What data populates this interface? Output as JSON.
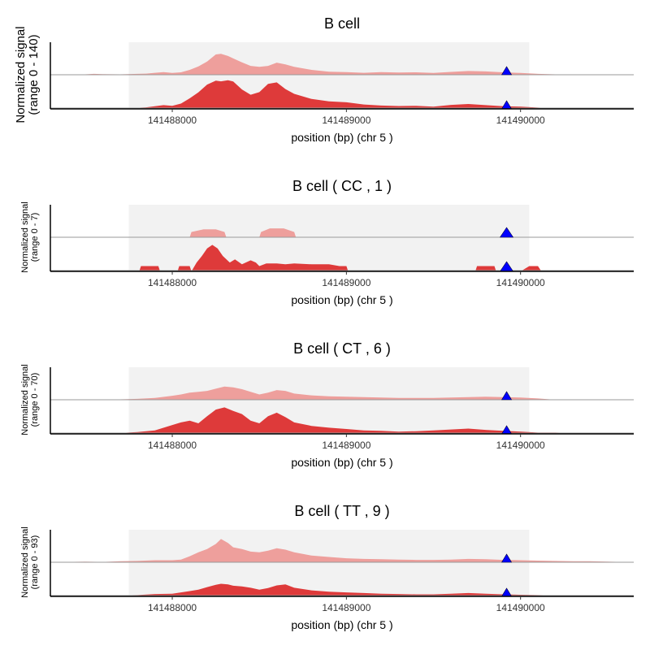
{
  "colors": {
    "group1": "#ee9f9c",
    "group2": "#de3a3a",
    "highlight": "#f2f2f2",
    "snp": "#0000ff",
    "baseline": "#999999",
    "axis": "#000000"
  },
  "chart_data": [
    {
      "type": "area",
      "title": "B cell",
      "ylabel_line1": "Normalized signal",
      "ylabel_line2": "(range 0 - 140)",
      "xlabel": "position (bp) (chr 5 )",
      "x_ticks": [
        141488000,
        141489000,
        141490000
      ],
      "x_tick_labels": [
        "141488000",
        "141489000",
        "141490000"
      ],
      "xlim": [
        141487300,
        141490650
      ],
      "highlight_range": [
        141487750,
        141490050
      ],
      "snp_position": 141489920,
      "ylim": [
        0,
        140
      ],
      "series": [
        {
          "x": [
            141487300,
            141487400,
            141487500,
            141487550,
            141487600,
            141487700,
            141487800,
            141487850,
            141487900,
            141487950,
            141488000,
            141488050,
            141488100,
            141488150,
            141488200,
            141488250,
            141488280,
            141488320,
            141488350,
            141488400,
            141488450,
            141488500,
            141488550,
            141488600,
            141488650,
            141488700,
            141488800,
            141488900,
            141489000,
            141489100,
            141489200,
            141489300,
            141489400,
            141489500,
            141489600,
            141489700,
            141489800,
            141489900,
            141490000,
            141490100,
            141490200,
            141490400,
            141490650
          ],
          "values": [
            0,
            1,
            2,
            4,
            3,
            2,
            4,
            5,
            9,
            12,
            8,
            11,
            22,
            38,
            60,
            92,
            95,
            85,
            74,
            56,
            40,
            36,
            40,
            55,
            47,
            36,
            22,
            14,
            12,
            9,
            12,
            10,
            11,
            8,
            13,
            17,
            15,
            11,
            8,
            4,
            2,
            2,
            0
          ]
        },
        {
          "x": [
            141487300,
            141487400,
            141487500,
            141487550,
            141487600,
            141487700,
            141487800,
            141487850,
            141487900,
            141487950,
            141488000,
            141488050,
            141488100,
            141488150,
            141488200,
            141488250,
            141488280,
            141488320,
            141488350,
            141488400,
            141488450,
            141488500,
            141488550,
            141488600,
            141488650,
            141488700,
            141488800,
            141488900,
            141489000,
            141489100,
            141489200,
            141489300,
            141489400,
            141489500,
            141489600,
            141489700,
            141489800,
            141489900,
            141490000,
            141490100,
            141490200,
            141490400,
            141490650
          ],
          "values": [
            0,
            5,
            2,
            4,
            3,
            2,
            5,
            7,
            12,
            17,
            14,
            24,
            48,
            75,
            110,
            128,
            125,
            130,
            124,
            88,
            64,
            76,
            113,
            120,
            90,
            68,
            45,
            34,
            30,
            20,
            15,
            13,
            14,
            10,
            18,
            22,
            17,
            12,
            10,
            6,
            3,
            2,
            0
          ]
        }
      ]
    },
    {
      "type": "area",
      "title": "B cell ( CC , 1 )",
      "ylabel_line1": "Normalized signal",
      "ylabel_line2": "(range 0 - 7)",
      "xlabel": "position (bp) (chr 5 )",
      "x_ticks": [
        141488000,
        141489000,
        141490000
      ],
      "x_tick_labels": [
        "141488000",
        "141489000",
        "141490000"
      ],
      "xlim": [
        141487300,
        141490650
      ],
      "highlight_range": [
        141487750,
        141490050
      ],
      "snp_position": 141489920,
      "ylim": [
        0,
        7
      ],
      "series": [
        {
          "x": [
            141487300,
            141488100,
            141488110,
            141488180,
            141488250,
            141488300,
            141488310,
            141488500,
            141488510,
            141488560,
            141488640,
            141488700,
            141488710,
            141490650
          ],
          "values": [
            0,
            0,
            1.2,
            1.8,
            1.8,
            1.2,
            0,
            0,
            1.2,
            2.0,
            2.0,
            1.2,
            0,
            0
          ],
          "step": true
        },
        {
          "x": [
            141487300,
            141487810,
            141487820,
            141487920,
            141487930,
            141488030,
            141488040,
            141488100,
            141488110,
            141488140,
            141488170,
            141488200,
            141488230,
            141488260,
            141488290,
            141488330,
            141488360,
            141488400,
            141488450,
            141488480,
            141488500,
            141488540,
            141488600,
            141488650,
            141488700,
            141488800,
            141488900,
            141488960,
            141489000,
            141489010,
            141489740,
            141489750,
            141489850,
            141489860,
            141490000,
            141490050,
            141490100,
            141490120,
            141490200,
            141490210,
            141490650
          ],
          "values": [
            0,
            0,
            1.2,
            1.2,
            0,
            0,
            1.2,
            1.2,
            0,
            2.0,
            3.5,
            5.2,
            6.0,
            5.2,
            3.5,
            2.0,
            2.7,
            1.6,
            2.5,
            2.0,
            1.2,
            1.8,
            1.8,
            1.6,
            1.8,
            1.6,
            1.6,
            1.2,
            1.2,
            0,
            0,
            1.2,
            1.2,
            0,
            0,
            1.2,
            1.2,
            0,
            0,
            0,
            0
          ],
          "step": true
        }
      ]
    },
    {
      "type": "area",
      "title": "B cell ( CT , 6 )",
      "ylabel_line1": "Normalized signal",
      "ylabel_line2": "(range 0 - 70)",
      "xlabel": "position (bp) (chr 5 )",
      "x_ticks": [
        141488000,
        141489000,
        141490000
      ],
      "x_tick_labels": [
        "141488000",
        "141489000",
        "141490000"
      ],
      "xlim": [
        141487300,
        141490650
      ],
      "highlight_range": [
        141487750,
        141490050
      ],
      "snp_position": 141489920,
      "ylim": [
        0,
        70
      ],
      "series": [
        {
          "x": [
            141487300,
            141487500,
            141487700,
            141487800,
            141487900,
            141488000,
            141488050,
            141488100,
            141488150,
            141488200,
            141488250,
            141488300,
            141488350,
            141488400,
            141488450,
            141488500,
            141488550,
            141488600,
            141488650,
            141488700,
            141488800,
            141488900,
            141489000,
            141489100,
            141489200,
            141489300,
            141489400,
            141489500,
            141489600,
            141489700,
            141489800,
            141489900,
            141490000,
            141490100,
            141490200,
            141490650
          ],
          "values": [
            0,
            0,
            1,
            2,
            4,
            9,
            12,
            16,
            18,
            20,
            25,
            30,
            28,
            24,
            18,
            12,
            16,
            22,
            20,
            14,
            10,
            8,
            7,
            6,
            5,
            4,
            4,
            4,
            5,
            6,
            7,
            6,
            5,
            3,
            0,
            0
          ]
        },
        {
          "x": [
            141487300,
            141487400,
            141487600,
            141487700,
            141487800,
            141487900,
            141488000,
            141488050,
            141488100,
            141488150,
            141488200,
            141488250,
            141488300,
            141488350,
            141488400,
            141488450,
            141488500,
            141488550,
            141488600,
            141488650,
            141488700,
            141488800,
            141488900,
            141489000,
            141489100,
            141489200,
            141489300,
            141489400,
            141489500,
            141489600,
            141489700,
            141489800,
            141489900,
            141490000,
            141490100,
            141490200,
            141490300,
            141490400,
            141490650
          ],
          "values": [
            0,
            2,
            1,
            2,
            4,
            8,
            20,
            26,
            30,
            24,
            40,
            55,
            60,
            52,
            45,
            30,
            24,
            40,
            48,
            38,
            26,
            18,
            14,
            11,
            8,
            7,
            5,
            6,
            8,
            10,
            12,
            9,
            7,
            5,
            3,
            3,
            2,
            2,
            0
          ]
        }
      ]
    },
    {
      "type": "area",
      "title": "B cell ( TT , 9 )",
      "ylabel_line1": "Normalized signal",
      "ylabel_line2": "(range 0 - 93)",
      "xlabel": "position (bp) (chr 5 )",
      "x_ticks": [
        141488000,
        141489000,
        141490000
      ],
      "x_tick_labels": [
        "141488000",
        "141489000",
        "141490000"
      ],
      "xlim": [
        141487300,
        141490650
      ],
      "highlight_range": [
        141487750,
        141490050
      ],
      "snp_position": 141489920,
      "ylim": [
        0,
        93
      ],
      "series": [
        {
          "x": [
            141487300,
            141487400,
            141487500,
            141487600,
            141487700,
            141487800,
            141487900,
            141488000,
            141488050,
            141488100,
            141488150,
            141488200,
            141488250,
            141488280,
            141488320,
            141488350,
            141488400,
            141488450,
            141488500,
            141488550,
            141488600,
            141488650,
            141488700,
            141488800,
            141488900,
            141489000,
            141489100,
            141489200,
            141489300,
            141489400,
            141489500,
            141489600,
            141489700,
            141489800,
            141489900,
            141490000,
            141490100,
            141490200,
            141490300,
            141490400,
            141490500,
            141490650
          ],
          "values": [
            0,
            1,
            2,
            1,
            3,
            4,
            6,
            6,
            8,
            18,
            30,
            40,
            55,
            70,
            58,
            45,
            40,
            32,
            30,
            35,
            42,
            38,
            30,
            20,
            16,
            12,
            10,
            9,
            8,
            7,
            7,
            8,
            10,
            9,
            7,
            6,
            5,
            4,
            3,
            3,
            2,
            0
          ]
        },
        {
          "x": [
            141487300,
            141487400,
            141487500,
            141487600,
            141487700,
            141487800,
            141487900,
            141488000,
            141488050,
            141488100,
            141488150,
            141488200,
            141488250,
            141488280,
            141488320,
            141488350,
            141488400,
            141488450,
            141488500,
            141488550,
            141488600,
            141488650,
            141488700,
            141488800,
            141488900,
            141489000,
            141489100,
            141489200,
            141489300,
            141489400,
            141489500,
            141489600,
            141489700,
            141489800,
            141489900,
            141490000,
            141490100,
            141490200,
            141490300,
            141490400,
            141490500,
            141490650
          ],
          "values": [
            0,
            2,
            3,
            2,
            3,
            4,
            7,
            8,
            12,
            16,
            20,
            28,
            35,
            38,
            36,
            32,
            30,
            26,
            20,
            25,
            33,
            36,
            26,
            18,
            14,
            12,
            10,
            8,
            7,
            6,
            6,
            8,
            10,
            8,
            6,
            5,
            4,
            3,
            3,
            2,
            2,
            0
          ]
        }
      ]
    }
  ]
}
